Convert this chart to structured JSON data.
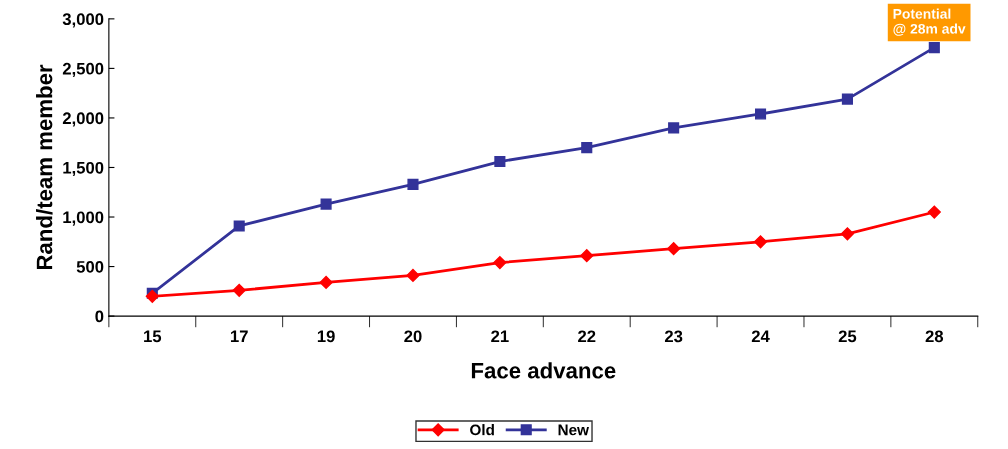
{
  "chart_data": {
    "type": "line",
    "xlabel": "Face advance",
    "ylabel": "Rand/team member",
    "categories": [
      "15",
      "17",
      "19",
      "20",
      "21",
      "22",
      "23",
      "24",
      "25",
      "28"
    ],
    "series": [
      {
        "name": "Old",
        "color": "#ff0000",
        "marker": "diamond",
        "values": [
          200,
          260,
          340,
          410,
          540,
          610,
          680,
          750,
          830,
          1050
        ]
      },
      {
        "name": "New",
        "color": "#333399",
        "marker": "square",
        "values": [
          230,
          910,
          1130,
          1330,
          1560,
          1700,
          1900,
          2040,
          2190,
          2710
        ]
      }
    ],
    "ylim": [
      0,
      3000
    ],
    "yticks": [
      {
        "value": 0,
        "label": "0"
      },
      {
        "value": 500,
        "label": "500"
      },
      {
        "value": 1000,
        "label": "1,000"
      },
      {
        "value": 1500,
        "label": "1,500"
      },
      {
        "value": 2000,
        "label": "2,000"
      },
      {
        "value": 2500,
        "label": "2,500"
      },
      {
        "value": 3000,
        "label": "3,000"
      }
    ],
    "annotations": [
      {
        "text": "Potential\n@ 28m adv",
        "x": "28",
        "y": 2710
      }
    ],
    "grid": false,
    "legend": "bottom",
    "line_style": "solid"
  }
}
